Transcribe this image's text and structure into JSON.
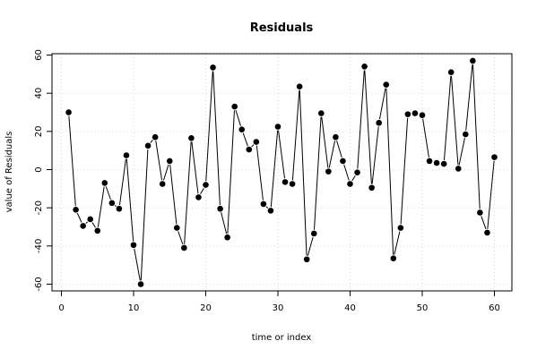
{
  "chart_data": {
    "type": "line",
    "title": "Residuals",
    "xlabel": "time or index",
    "ylabel": "value of Residuals",
    "xlim": [
      0,
      60
    ],
    "ylim": [
      -60,
      60
    ],
    "x_ticks": [
      0,
      10,
      20,
      30,
      40,
      50,
      60
    ],
    "y_ticks": [
      -60,
      -40,
      -20,
      0,
      20,
      40,
      60
    ],
    "grid": true,
    "marker": "filled-circle",
    "series": [
      {
        "x": [
          1,
          2,
          3,
          4,
          5,
          6,
          7,
          8,
          9,
          10,
          11,
          12,
          13,
          14,
          15,
          16,
          17,
          18,
          19,
          20,
          21,
          22,
          23,
          24,
          25,
          26,
          27,
          28,
          29,
          30,
          31,
          32,
          33,
          34,
          35,
          36,
          37,
          38,
          39,
          40,
          41,
          42,
          43,
          44,
          45,
          46,
          47,
          48,
          49,
          50,
          51,
          52,
          53,
          54,
          55,
          56,
          57,
          58,
          59,
          60
        ],
        "values": [
          30,
          -21,
          -29.5,
          -26,
          -32,
          -7,
          -17.5,
          -20.5,
          7.5,
          -39.5,
          -60,
          12.5,
          17,
          -7.5,
          4.5,
          -30.5,
          -41,
          16.5,
          -14.5,
          -8,
          53.5,
          -20.5,
          -35.5,
          33,
          21,
          10.5,
          14.5,
          -18,
          -21.5,
          22.5,
          -6.5,
          -7.5,
          43.5,
          -47,
          -33.5,
          29.5,
          -1,
          17,
          4.5,
          -7.5,
          -1.5,
          54,
          -9.5,
          24.5,
          44.5,
          -46.5,
          -30.5,
          29,
          29.5,
          28.5,
          4.5,
          3.5,
          3,
          51,
          0.5,
          18.5,
          57,
          -22.5,
          -33,
          6.5
        ]
      }
    ]
  }
}
